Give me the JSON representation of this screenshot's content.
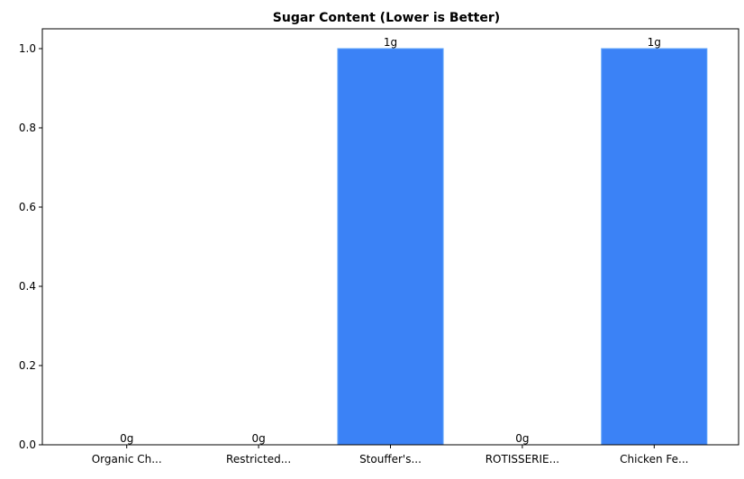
{
  "chart_data": {
    "type": "bar",
    "title": "Sugar Content (Lower is Better)",
    "xlabel": "",
    "ylabel": "",
    "categories": [
      "Organic Ch...",
      "Restricted...",
      "Stouffer's...",
      "ROTISSERIE...",
      "Chicken Fe..."
    ],
    "values": [
      0,
      0,
      1,
      0,
      1
    ],
    "data_labels": [
      "0g",
      "0g",
      "1g",
      "0g",
      "1g"
    ],
    "ylim": [
      0,
      1.05
    ],
    "yticks": [
      0.0,
      0.2,
      0.4,
      0.6,
      0.8,
      1.0
    ],
    "ytick_labels": [
      "0.0",
      "0.2",
      "0.4",
      "0.6",
      "0.8",
      "1.0"
    ],
    "grid": false,
    "bar_color": "#3b82f6",
    "bar_edge_color": "#60a5fa"
  }
}
